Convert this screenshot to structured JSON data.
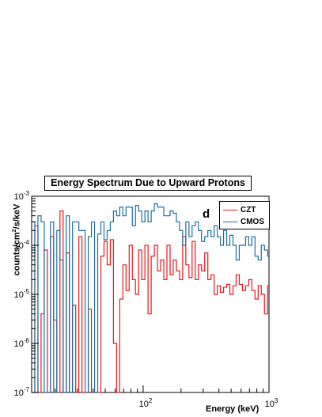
{
  "chart_data": {
    "type": "line",
    "title": "Energy Spectrum Due to Upward Protons",
    "panel_label": "d",
    "xlabel": "Energy (keV)",
    "ylabel_parts": [
      "counts/cm",
      "2",
      "/s/keV"
    ],
    "xscale": "log",
    "yscale": "log",
    "xlim": [
      13,
      1000
    ],
    "ylim": [
      1e-07,
      0.001
    ],
    "x_ticks": [
      {
        "value": 100,
        "base": "10",
        "exp": "2"
      },
      {
        "value": 1000,
        "base": "10",
        "exp": "3"
      }
    ],
    "y_ticks": [
      {
        "value": 1e-07,
        "base": "10",
        "exp": "-7"
      },
      {
        "value": 1e-06,
        "base": "10",
        "exp": "-6"
      },
      {
        "value": 1e-05,
        "base": "10",
        "exp": "-5"
      },
      {
        "value": 0.0001,
        "base": "10",
        "exp": "-4"
      },
      {
        "value": 0.001,
        "base": "10",
        "exp": "-3"
      }
    ],
    "legend_position": "top-right",
    "bins_per_decade": 40,
    "series": [
      {
        "name": "CZT",
        "color": "#e8191e",
        "values": [
          1e-07,
          0.00025,
          1e-07,
          4e-06,
          8e-05,
          1e-07,
          0.00015,
          3e-06,
          1e-07,
          0.0005,
          1e-07,
          7e-05,
          1e-07,
          6e-06,
          1e-07,
          0.00015,
          1e-07,
          1e-07,
          5e-06,
          1e-07,
          1e-07,
          1e-07,
          6e-05,
          0.00012,
          4e-05,
          0.00013,
          1e-06,
          1e-07,
          8e-06,
          4e-05,
          1.2e-05,
          0.0001,
          2e-05,
          1e-05,
          8e-05,
          2e-05,
          0.0001,
          4e-06,
          6e-05,
          0.0001,
          3e-05,
          5e-05,
          2e-05,
          0.0001,
          2.5e-05,
          5e-05,
          3e-05,
          2e-05,
          0.00015,
          4e-05,
          2.2e-05,
          0.00012,
          2e-05,
          4e-05,
          3e-05,
          7e-05,
          2e-05,
          2.5e-05,
          1e-05,
          1.5e-05,
          1.1e-05,
          1.4e-05,
          1.6e-05,
          1e-05,
          1.5e-05,
          2.5e-05,
          1.6e-05,
          1.2e-05,
          1.5e-05,
          2e-05,
          1.2e-05,
          8e-06,
          1.5e-05,
          1e-05,
          4e-06,
          1.5e-05,
          6e-06,
          1e-05,
          7e-06,
          1.5e-06,
          7e-06,
          1.4e-05,
          9e-06,
          5e-06,
          6e-06,
          3e-06,
          1e-06,
          3e-06,
          2e-06,
          5e-06,
          1.5e-06,
          2e-06,
          4e-06,
          1e-06,
          3e-07,
          2e-06,
          4e-07,
          1e-06,
          2e-06,
          1e-06,
          1e-06,
          6e-07,
          1e-06,
          2e-07,
          1e-07,
          1e-06,
          2e-06,
          6e-07,
          1e-07,
          4e-06,
          3e-06,
          4e-06,
          1.2e-06,
          4e-06,
          3e-06,
          1e-07,
          3e-06,
          2.5e-06,
          2.5e-06,
          3e-06,
          2.5e-06,
          6e-06,
          1e-05,
          8e-06
        ]
      },
      {
        "name": "CMOS",
        "color": "#1e6fa0",
        "values": [
          0.0003,
          1e-07,
          0.0004,
          0.0003,
          1e-07,
          1e-07,
          0.0003,
          1e-07,
          0.0002,
          5e-05,
          1e-07,
          0.0004,
          1e-07,
          0.0003,
          0.0003,
          0.0002,
          0.0002,
          1e-07,
          0.00015,
          0.0003,
          1e-07,
          0.00017,
          0.0003,
          0.00013,
          0.0002,
          0.0003,
          0.0005,
          0.0004,
          0.0006,
          0.0004,
          0.0006,
          0.0006,
          0.00025,
          0.00065,
          0.0005,
          0.0003,
          0.0005,
          0.0003,
          0.0005,
          0.0007,
          0.0006,
          0.0006,
          0.0004,
          0.0004,
          0.0005,
          0.00045,
          0.0003,
          0.0002,
          0.0001,
          0.0003,
          0.00015,
          0.00025,
          0.0003,
          0.0002,
          0.00012,
          0.00015,
          0.0002,
          0.00015,
          0.00025,
          0.00015,
          0.0001,
          0.0002,
          0.0001,
          0.00016,
          0.0001,
          5e-05,
          0.0001,
          0.0001,
          0.00015,
          0.0001,
          0.00015,
          6e-05,
          5e-05,
          0.0001,
          8e-05,
          6e-05,
          5e-05,
          8e-05,
          0.0001,
          0.00018,
          0.00022,
          9e-05,
          7e-05,
          0.00015,
          5e-05,
          2e-05,
          3e-05,
          3e-05,
          5e-05,
          1.3e-05,
          3e-05,
          2e-05,
          2e-05,
          1.5e-05,
          2e-05,
          8e-06,
          1.5e-05,
          1e-05,
          1e-05,
          8e-06,
          6e-06,
          5e-06,
          9e-06,
          3e-06,
          1.2e-06,
          5e-06,
          5e-06,
          1e-05,
          9e-06,
          3e-06,
          5e-06,
          9e-06,
          5e-06,
          3e-06,
          4e-06,
          6e-06,
          8e-06,
          2.5e-06,
          3e-06,
          2e-06,
          4e-06,
          4e-06,
          1e-07,
          6e-06
        ]
      }
    ]
  }
}
